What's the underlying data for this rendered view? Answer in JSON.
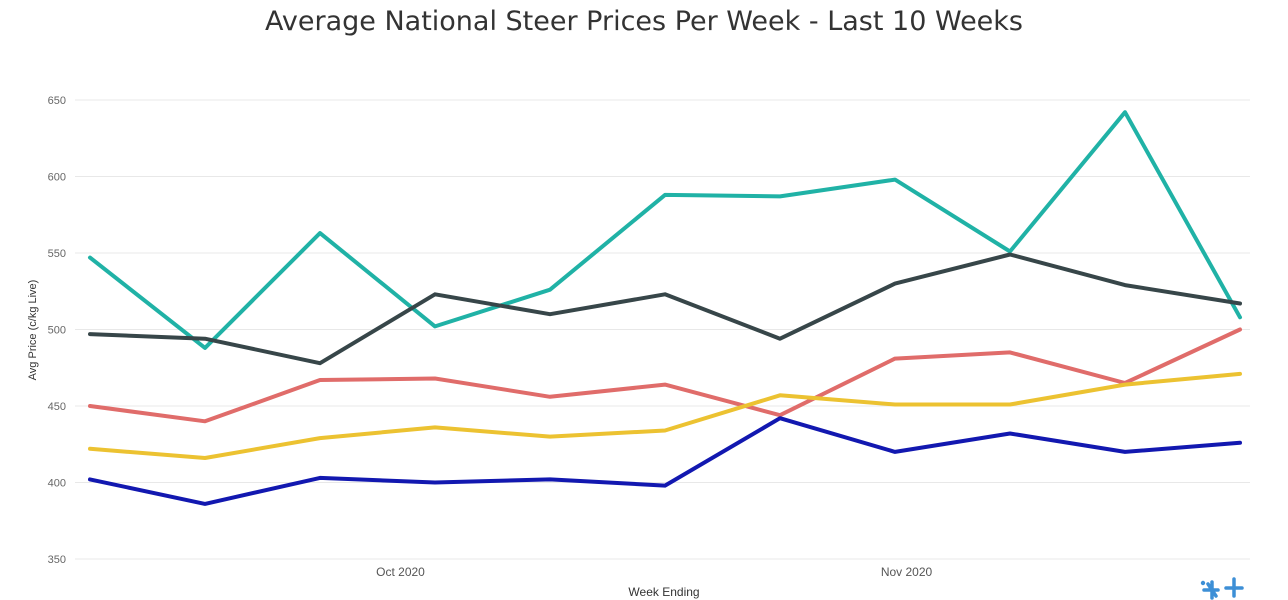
{
  "chart_data": {
    "type": "line",
    "title": "Average National Steer Prices Per Week - Last 10 Weeks",
    "xlabel": "Week Ending",
    "ylabel": "Avg Price (c/kg Live)",
    "ylim": [
      350,
      650
    ],
    "y_ticks": [
      350,
      400,
      450,
      500,
      550,
      600,
      650
    ],
    "x_count": 11,
    "x_tick_labels": [
      {
        "index": 2.7,
        "label": "Oct 2020"
      },
      {
        "index": 7.1,
        "label": "Nov 2020"
      }
    ],
    "grid": true,
    "legend": "none",
    "series": [
      {
        "color": "#20b2a6",
        "values": [
          547,
          488,
          563,
          502,
          526,
          588,
          587,
          598,
          551,
          642,
          508
        ]
      },
      {
        "color": "#374649",
        "values": [
          497,
          494,
          478,
          523,
          510,
          523,
          494,
          530,
          549,
          529,
          517
        ]
      },
      {
        "color": "#e06c6a",
        "values": [
          450,
          440,
          467,
          468,
          456,
          464,
          444,
          481,
          485,
          465,
          500
        ]
      },
      {
        "color": "#ecc231",
        "values": [
          422,
          416,
          429,
          436,
          430,
          434,
          457,
          451,
          451,
          464,
          471
        ]
      },
      {
        "color": "#1218b0",
        "values": [
          402,
          386,
          403,
          400,
          402,
          398,
          442,
          420,
          432,
          420,
          426
        ]
      }
    ]
  },
  "logo": {
    "name": "brand-logo-icon",
    "color": "#3d8fd6"
  }
}
